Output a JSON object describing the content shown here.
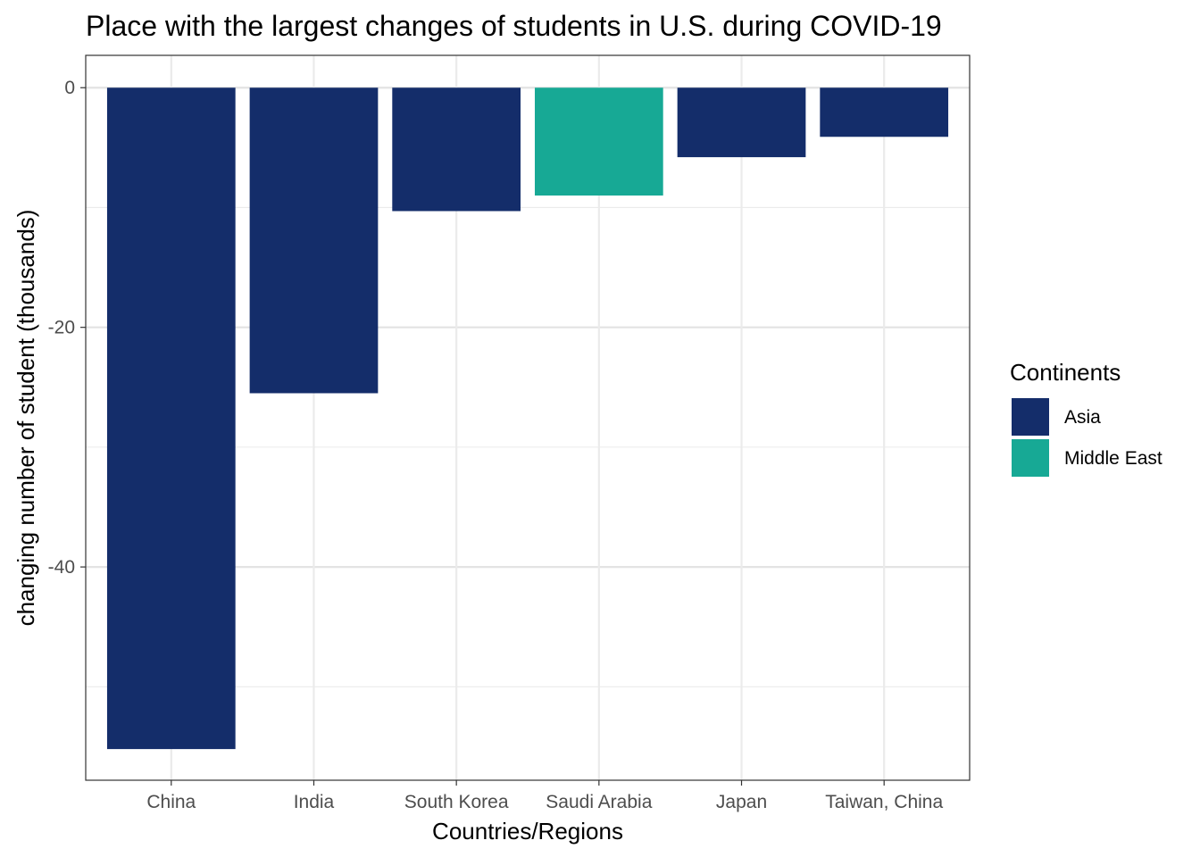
{
  "chart_data": {
    "type": "bar",
    "title": "Place with the largest changes of students in U.S. during COVID-19",
    "xlabel": "Countries/Regions",
    "ylabel": "changing number of student (thousands)",
    "categories": [
      "China",
      "India",
      "South Korea",
      "Saudi Arabia",
      "Japan",
      "Taiwan, China"
    ],
    "values": [
      -55.2,
      -25.5,
      -10.3,
      -9.0,
      -5.8,
      -4.1
    ],
    "groups": [
      "Asia",
      "Asia",
      "Asia",
      "Middle East",
      "Asia",
      "Asia"
    ],
    "ylim": [
      -57.8,
      2.7
    ],
    "y_ticks": [
      0,
      -20,
      -40
    ],
    "y_tick_labels": [
      "0",
      "-20",
      "-40"
    ],
    "grid": true,
    "legend": {
      "title": "Continents",
      "placement": "right",
      "entries": [
        {
          "label": "Asia",
          "color": "#142d6a"
        },
        {
          "label": "Middle East",
          "color": "#17a995"
        }
      ]
    }
  }
}
